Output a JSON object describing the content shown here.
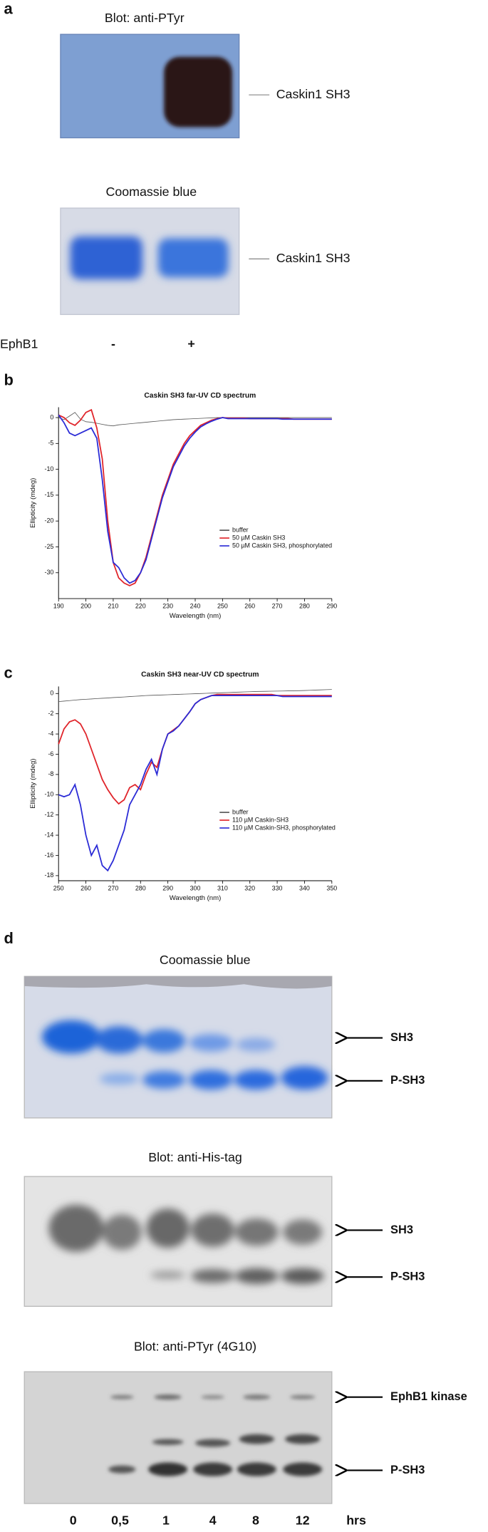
{
  "panel_labels": [
    "a",
    "b",
    "c",
    "d"
  ],
  "panel_a": {
    "blot1_title": "Blot:  anti-PTyr",
    "blot1_label": "Caskin1 SH3",
    "blot2_title": "Coomassie blue",
    "blot2_label": "Caskin1 SH3",
    "row_label": "EphB1",
    "lanes": [
      "-",
      "+"
    ]
  },
  "panel_d": {
    "gels": [
      {
        "title": "Coomassie blue",
        "bands": [
          "SH3",
          "P-SH3"
        ]
      },
      {
        "title": "Blot: anti-His-tag",
        "bands": [
          "SH3",
          "P-SH3"
        ]
      },
      {
        "title": "Blot: anti-PTyr (4G10)",
        "bands": [
          "EphB1 kinase",
          "P-SH3"
        ]
      }
    ],
    "lanes": [
      "0",
      "0,5",
      "1",
      "4",
      "8",
      "12"
    ],
    "unit": "hrs"
  },
  "chart_data": [
    {
      "type": "line",
      "title": "Caskin SH3 far-UV CD spectrum",
      "xlabel": "Wavelength (nm)",
      "ylabel": "Ellipticity (mdeg)",
      "legend": "lower right",
      "xlim": [
        190,
        290
      ],
      "xticks": [
        190,
        200,
        210,
        220,
        230,
        240,
        250,
        260,
        270,
        280,
        290
      ],
      "ylim": [
        -35,
        2
      ],
      "yticks": [
        0,
        -5,
        -10,
        -15,
        -20,
        -25,
        -30
      ],
      "x": [
        190,
        192,
        194,
        196,
        198,
        200,
        202,
        204,
        206,
        208,
        210,
        212,
        214,
        216,
        218,
        220,
        222,
        224,
        226,
        228,
        230,
        232,
        234,
        236,
        238,
        240,
        242,
        244,
        246,
        248,
        250,
        252,
        254,
        256,
        258,
        260,
        262,
        264,
        266,
        268,
        270,
        272,
        274,
        276,
        278,
        280,
        282,
        284,
        286,
        288,
        290
      ],
      "series": [
        {
          "name": "buffer",
          "color": "#555555",
          "values": [
            0,
            -0.4,
            0.3,
            1,
            -0.3,
            -0.8,
            -0.9,
            -1.1,
            -1.3,
            -1.5,
            -1.6,
            -1.4,
            -1.3,
            -1.2,
            -1.1,
            -1,
            -0.9,
            -0.8,
            -0.7,
            -0.6,
            -0.5,
            -0.4,
            -0.35,
            -0.3,
            -0.25,
            -0.2,
            -0.15,
            -0.1,
            -0.05,
            0,
            0,
            0,
            0,
            0,
            0,
            0,
            0,
            0,
            0,
            0,
            0,
            0,
            0,
            0,
            0,
            0,
            0,
            0,
            0,
            0,
            0
          ]
        },
        {
          "name": "50 µM Caskin SH3",
          "color": "#e0242a",
          "values": [
            0.5,
            0,
            -1,
            -1.5,
            -0.5,
            1,
            1.5,
            -2,
            -8,
            -20,
            -28,
            -31,
            -32,
            -32.5,
            -32,
            -30,
            -27,
            -23,
            -19,
            -15,
            -12,
            -9,
            -7,
            -5,
            -3.5,
            -2.5,
            -1.5,
            -1,
            -0.5,
            -0.2,
            0,
            -0.1,
            -0.1,
            -0.1,
            -0.1,
            -0.2,
            -0.2,
            -0.2,
            -0.2,
            -0.2,
            -0.2,
            -0.2,
            -0.2,
            -0.3,
            -0.3,
            -0.3,
            -0.3,
            -0.3,
            -0.3,
            -0.3,
            -0.3
          ]
        },
        {
          "name": "50 µM Caskin SH3, phosphorylated",
          "color": "#2b2bd6",
          "values": [
            0.5,
            -1,
            -3,
            -3.5,
            -3,
            -2.5,
            -2,
            -4,
            -12,
            -22,
            -28,
            -29,
            -31,
            -32,
            -31.5,
            -30,
            -27.5,
            -23.5,
            -19.5,
            -15.5,
            -12.5,
            -9.5,
            -7.5,
            -5.5,
            -4,
            -2.8,
            -1.8,
            -1.2,
            -0.7,
            -0.3,
            0,
            -0.2,
            -0.2,
            -0.2,
            -0.2,
            -0.2,
            -0.2,
            -0.2,
            -0.2,
            -0.2,
            -0.2,
            -0.3,
            -0.3,
            -0.3,
            -0.3,
            -0.3,
            -0.3,
            -0.3,
            -0.3,
            -0.3,
            -0.3
          ]
        }
      ]
    },
    {
      "type": "line",
      "title": "Caskin SH3 near-UV CD spectrum",
      "xlabel": "Wavelength (nm)",
      "ylabel": "Ellipticity (mdeg)",
      "legend": "lower right",
      "xlim": [
        250,
        350
      ],
      "xticks": [
        250,
        260,
        270,
        280,
        290,
        300,
        310,
        320,
        330,
        340,
        350
      ],
      "ylim": [
        -18.5,
        0.7
      ],
      "yticks": [
        0,
        -2,
        -4,
        -6,
        -8,
        -10,
        -12,
        -14,
        -16,
        -18
      ],
      "x": [
        250,
        252,
        254,
        256,
        258,
        260,
        262,
        264,
        266,
        268,
        270,
        272,
        274,
        276,
        278,
        280,
        282,
        284,
        286,
        288,
        290,
        292,
        294,
        296,
        298,
        300,
        302,
        304,
        306,
        308,
        310,
        312,
        314,
        316,
        318,
        320,
        322,
        324,
        326,
        328,
        330,
        332,
        334,
        336,
        338,
        340,
        342,
        344,
        346,
        348,
        350
      ],
      "series": [
        {
          "name": "buffer",
          "color": "#555555",
          "values": [
            -0.8,
            -0.75,
            -0.7,
            -0.65,
            -0.6,
            -0.57,
            -0.54,
            -0.5,
            -0.47,
            -0.44,
            -0.4,
            -0.37,
            -0.34,
            -0.3,
            -0.27,
            -0.24,
            -0.2,
            -0.18,
            -0.16,
            -0.14,
            -0.12,
            -0.1,
            -0.08,
            -0.06,
            -0.04,
            -0.02,
            0,
            0.02,
            0.04,
            0.06,
            0.08,
            0.1,
            0.12,
            0.14,
            0.16,
            0.18,
            0.2,
            0.21,
            0.22,
            0.23,
            0.24,
            0.25,
            0.26,
            0.27,
            0.28,
            0.3,
            0.32,
            0.34,
            0.36,
            0.38,
            0.4
          ]
        },
        {
          "name": "110 µM Caskin-SH3",
          "color": "#e0242a",
          "values": [
            -5,
            -3.5,
            -2.8,
            -2.6,
            -3,
            -4,
            -5.5,
            -7,
            -8.5,
            -9.5,
            -10.3,
            -10.9,
            -10.5,
            -9.3,
            -9,
            -9.5,
            -8,
            -6.8,
            -7.3,
            -5.5,
            -4,
            -3.6,
            -3.2,
            -2.5,
            -1.8,
            -1,
            -0.6,
            -0.4,
            -0.2,
            -0.1,
            -0.1,
            -0.1,
            -0.1,
            -0.1,
            -0.1,
            -0.1,
            -0.1,
            -0.1,
            -0.1,
            -0.1,
            -0.2,
            -0.2,
            -0.2,
            -0.2,
            -0.2,
            -0.2,
            -0.2,
            -0.2,
            -0.2,
            -0.2,
            -0.2
          ]
        },
        {
          "name": "110 µM Caskin-SH3, phosphorylated",
          "color": "#2b2bd6",
          "values": [
            -10,
            -10.2,
            -10,
            -9,
            -11,
            -14,
            -16,
            -15,
            -17,
            -17.5,
            -16.5,
            -15,
            -13.5,
            -11,
            -10,
            -9,
            -7.5,
            -6.5,
            -8,
            -5.5,
            -4,
            -3.7,
            -3.2,
            -2.5,
            -1.8,
            -1,
            -0.6,
            -0.4,
            -0.2,
            -0.2,
            -0.2,
            -0.2,
            -0.2,
            -0.2,
            -0.2,
            -0.2,
            -0.2,
            -0.2,
            -0.2,
            -0.2,
            -0.2,
            -0.3,
            -0.3,
            -0.3,
            -0.3,
            -0.3,
            -0.3,
            -0.3,
            -0.3,
            -0.3,
            -0.3
          ]
        }
      ]
    }
  ]
}
